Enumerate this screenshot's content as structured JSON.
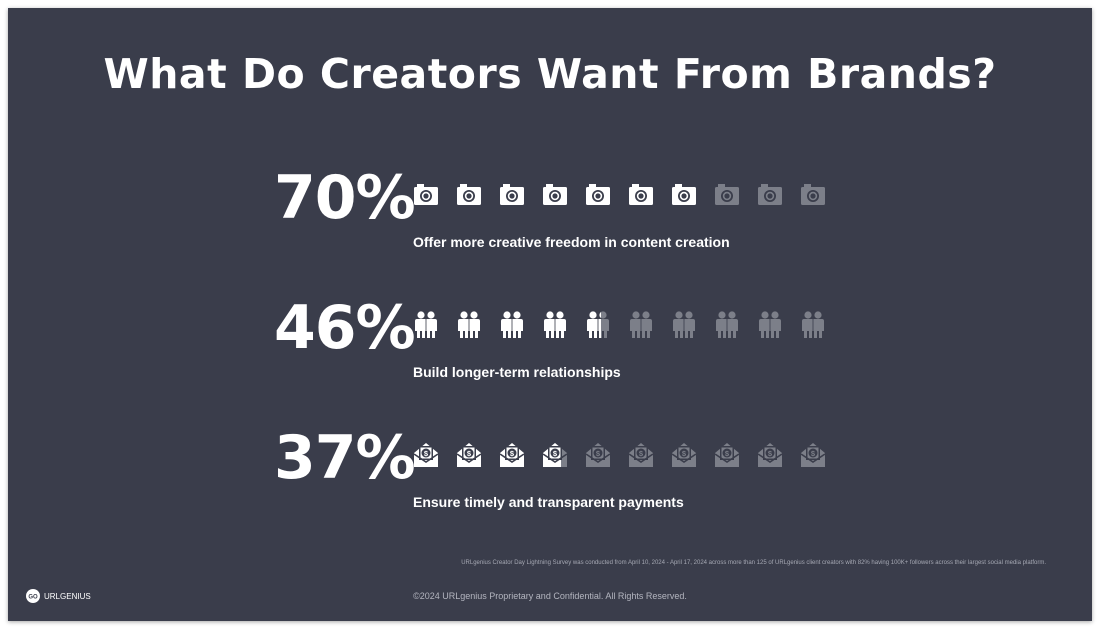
{
  "title": "What Do Creators Want From Brands?",
  "stats": [
    {
      "percent_label": "70%",
      "value": 70,
      "icon": "camera-icon",
      "caption": "Offer more creative freedom in content creation"
    },
    {
      "percent_label": "46%",
      "value": 46,
      "icon": "people-icon",
      "caption": "Build longer-term relationships"
    },
    {
      "percent_label": "37%",
      "value": 37,
      "icon": "money-envelope-icon",
      "caption": "Ensure timely and transparent payments"
    }
  ],
  "icons_per_row": 10,
  "colors": {
    "background": "#3a3d4b",
    "icon_filled": "#ffffff",
    "icon_empty": "#7c7f89",
    "text": "#ffffff"
  },
  "footer": {
    "source_note": "URLgenius Creator Day Lightning Survey was conducted from April 10, 2024 - April 17, 2024 across more than 125 of URLgenius client creators with 82% having 100K+ followers across their largest social media platform.",
    "copyright": "©2024 URLgenius Proprietary and Confidential. All Rights Reserved.",
    "logo_mark": "GO",
    "logo_text": "URLGENIUS"
  }
}
